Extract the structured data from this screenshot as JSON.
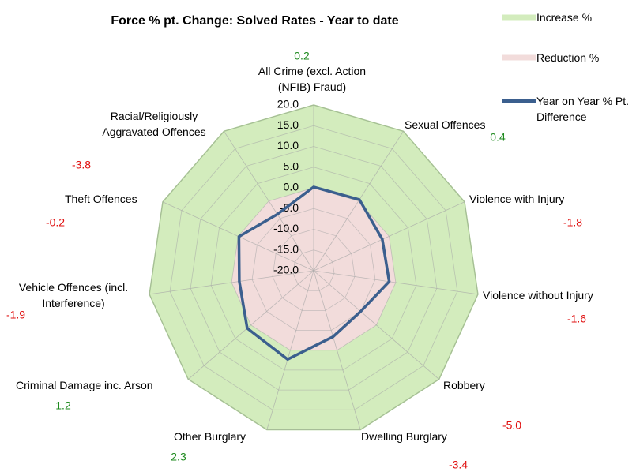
{
  "chart_data": {
    "type": "radar",
    "title": "Force % pt. Change: Solved Rates - Year to date",
    "categories": [
      "All Crime (excl. Action (NFIB) Fraud)",
      "Sexual Offences",
      "Violence with Injury",
      "Violence without Injury",
      "Robbery",
      "Dwelling Burglary",
      "Other Burglary",
      "Criminal Damage inc. Arson",
      "Vehicle Offences (incl. Interference)",
      "Theft Offences",
      "Racial/Religiously Aggravated Offences"
    ],
    "series": [
      {
        "name": "Increase %",
        "color": "#d3ecbd",
        "kind": "area",
        "values": [
          20,
          20,
          20,
          20,
          20,
          20,
          20,
          20,
          20,
          20,
          20
        ]
      },
      {
        "name": "Reduction %",
        "color": "#f2dcdb",
        "kind": "area",
        "values": [
          0,
          0,
          0,
          0,
          0,
          0,
          0,
          0,
          0,
          0,
          0
        ]
      },
      {
        "name": "Year on Year % Pt.  Difference",
        "color": "#3b5f8e",
        "kind": "line",
        "values": [
          0.2,
          0.4,
          -1.8,
          -1.6,
          -5.0,
          -3.4,
          2.3,
          1.2,
          -1.9,
          -0.2,
          -3.8
        ],
        "value_labels": [
          "0.2",
          "0.4",
          "-1.8",
          "-1.6",
          "-5.0",
          "-3.4",
          "2.3",
          "1.2",
          "-1.9",
          "-0.2",
          "-3.8"
        ]
      }
    ],
    "ylim": [
      -20,
      20
    ],
    "yticks": [
      {
        "value": -20,
        "label": "-20.0"
      },
      {
        "value": -15,
        "label": "-15.0"
      },
      {
        "value": -10,
        "label": "-10.0"
      },
      {
        "value": -5,
        "label": "-5.0"
      },
      {
        "value": 0,
        "label": "0.0"
      },
      {
        "value": 5,
        "label": "5.0"
      },
      {
        "value": 10,
        "label": "10.0"
      },
      {
        "value": 15,
        "label": "15.0"
      },
      {
        "value": 20,
        "label": "20.0"
      }
    ],
    "grid": true,
    "legend": "right",
    "positive_label_color": "#1e8a1e",
    "negative_label_color": "#e01010"
  }
}
